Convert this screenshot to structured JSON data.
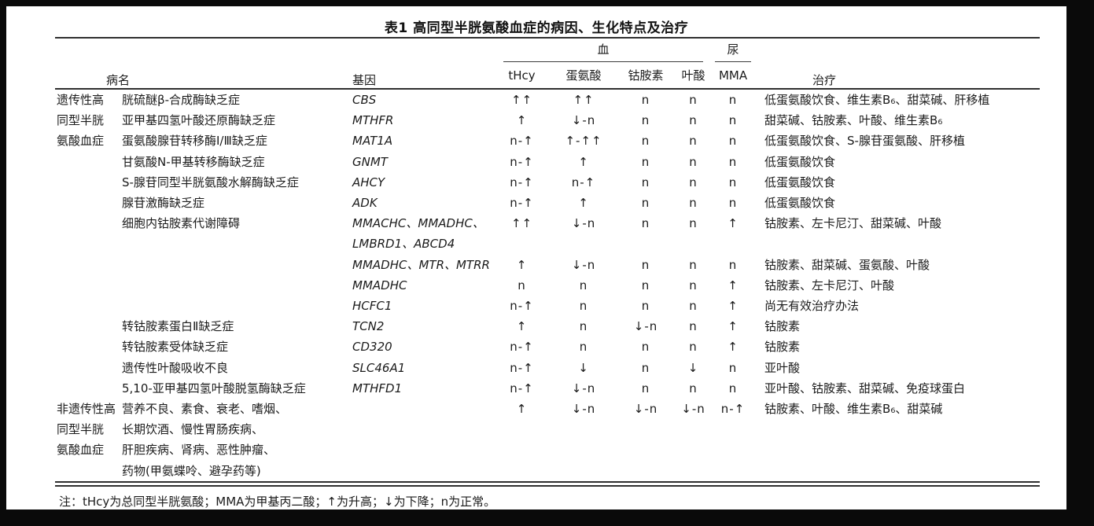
{
  "title": "表1 高同型半胱氨酸血症的病因、生化特点及治疗",
  "table": {
    "columns": {
      "disease": "病名",
      "gene": "基因",
      "blood_group": "血",
      "urine_group": "尿",
      "treatment": "治疗",
      "sub": [
        "tHcy",
        "蛋氨酸",
        "钴胺素",
        "叶酸",
        "MMA"
      ]
    },
    "rows": [
      [
        "遗传性高",
        "胱硫醚β-合成酶缺乏症",
        "CBS",
        "↑↑",
        "↑↑",
        "n",
        "n",
        "n",
        "低蛋氨酸饮食、维生素B₆、甜菜碱、肝移植"
      ],
      [
        "同型半胱",
        "亚甲基四氢叶酸还原酶缺乏症",
        "MTHFR",
        "↑",
        "↓-n",
        "n",
        "n",
        "n",
        "甜菜碱、钴胺素、叶酸、维生素B₆"
      ],
      [
        "氨酸血症",
        "蛋氨酸腺苷转移酶Ⅰ/Ⅲ缺乏症",
        "MAT1A",
        "n-↑",
        "↑-↑↑",
        "n",
        "n",
        "n",
        "低蛋氨酸饮食、S-腺苷蛋氨酸、肝移植"
      ],
      [
        "",
        "甘氨酸N-甲基转移酶缺乏症",
        "GNMT",
        "n-↑",
        "↑",
        "n",
        "n",
        "n",
        "低蛋氨酸饮食"
      ],
      [
        "",
        "S-腺苷同型半胱氨酸水解酶缺乏症",
        "AHCY",
        "n-↑",
        "n-↑",
        "n",
        "n",
        "n",
        "低蛋氨酸饮食"
      ],
      [
        "",
        "腺苷激酶缺乏症",
        "ADK",
        "n-↑",
        "↑",
        "n",
        "n",
        "n",
        "低蛋氨酸饮食"
      ],
      [
        "",
        "细胞内钴胺素代谢障碍",
        "MMACHC、MMADHC、",
        "↑↑",
        "↓-n",
        "n",
        "n",
        "↑",
        "钴胺素、左卡尼汀、甜菜碱、叶酸"
      ],
      [
        "",
        "",
        "LMBRD1、ABCD4",
        "",
        "",
        "",
        "",
        "",
        ""
      ],
      [
        "",
        "",
        "MMADHC、MTR、MTRR",
        "↑",
        "↓-n",
        "n",
        "n",
        "n",
        "钴胺素、甜菜碱、蛋氨酸、叶酸"
      ],
      [
        "",
        "",
        "MMADHC",
        "n",
        "n",
        "n",
        "n",
        "↑",
        "钴胺素、左卡尼汀、叶酸"
      ],
      [
        "",
        "",
        "HCFC1",
        "n-↑",
        "n",
        "n",
        "n",
        "↑",
        "尚无有效治疗办法"
      ],
      [
        "",
        "转钴胺素蛋白Ⅱ缺乏症",
        "TCN2",
        "↑",
        "n",
        "↓-n",
        "n",
        "↑",
        "钴胺素"
      ],
      [
        "",
        "转钴胺素受体缺乏症",
        "CD320",
        "n-↑",
        "n",
        "n",
        "n",
        "↑",
        "钴胺素"
      ],
      [
        "",
        "遗传性叶酸吸收不良",
        "SLC46A1",
        "n-↑",
        "↓",
        "n",
        "↓",
        "n",
        "亚叶酸"
      ],
      [
        "",
        "5,10-亚甲基四氢叶酸脱氢酶缺乏症",
        "MTHFD1",
        "n-↑",
        "↓-n",
        "n",
        "n",
        "n",
        "亚叶酸、钴胺素、甜菜碱、免疫球蛋白"
      ],
      [
        "非遗传性高",
        "营养不良、素食、衰老、嗜烟、",
        "",
        "↑",
        "↓-n",
        "↓-n",
        "↓-n",
        "n-↑",
        "钴胺素、叶酸、维生素B₆、甜菜碱"
      ],
      [
        "同型半胱",
        "长期饮酒、慢性胃肠疾病、",
        "",
        "",
        "",
        "",
        "",
        "",
        ""
      ],
      [
        "氨酸血症",
        "肝胆疾病、肾病、恶性肿瘤、",
        "",
        "",
        "",
        "",
        "",
        "",
        ""
      ],
      [
        "",
        "药物(甲氨蝶呤、避孕药等)",
        "",
        "",
        "",
        "",
        "",
        "",
        ""
      ]
    ]
  },
  "footnote": "注：tHcy为总同型半胱氨酸；MMA为甲基丙二酸；↑为升高；↓为下降；n为正常。"
}
